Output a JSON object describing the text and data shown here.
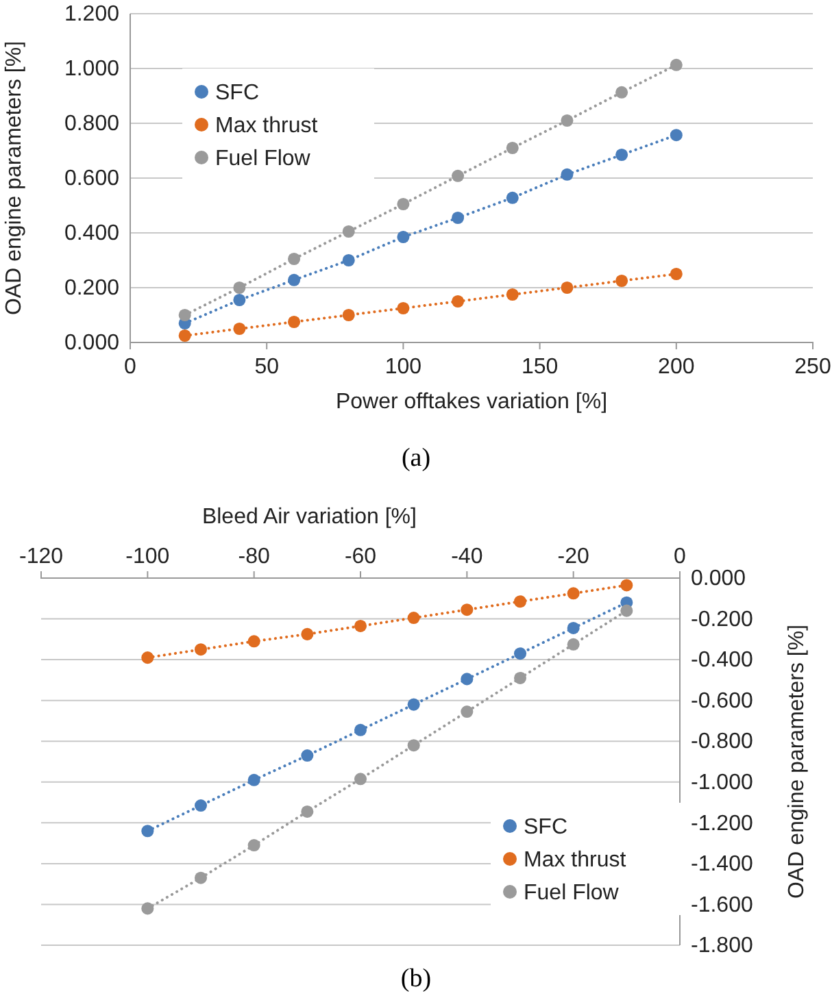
{
  "chart_data": [
    {
      "type": "line",
      "xlabel": "Power offtakes variation [%]",
      "ylabel": "OAD engine parameters [%]",
      "annotations": [
        "(a)"
      ],
      "x": [
        20,
        40,
        60,
        80,
        100,
        120,
        140,
        160,
        180,
        200
      ],
      "series": [
        {
          "name": "SFC",
          "color": "#4a7ebb",
          "values": [
            0.07,
            0.155,
            0.228,
            0.3,
            0.385,
            0.455,
            0.528,
            0.613,
            0.685,
            0.757
          ]
        },
        {
          "name": "Max thrust",
          "color": "#e06c1f",
          "values": [
            0.025,
            0.05,
            0.075,
            0.1,
            0.125,
            0.15,
            0.175,
            0.2,
            0.225,
            0.25
          ]
        },
        {
          "name": "Fuel Flow",
          "color": "#9a9a9a",
          "values": [
            0.1,
            0.2,
            0.305,
            0.405,
            0.505,
            0.608,
            0.71,
            0.81,
            0.913,
            1.013
          ]
        }
      ],
      "xlim": [
        0,
        250
      ],
      "xticks": [
        0,
        50,
        100,
        150,
        200,
        250
      ],
      "ylim": [
        0,
        1.2
      ],
      "yticks": [
        {
          "value": 0,
          "label": "0.000"
        },
        {
          "value": 0.2,
          "label": "0.200"
        },
        {
          "value": 0.4,
          "label": "0.400"
        },
        {
          "value": 0.6,
          "label": "0.600"
        },
        {
          "value": 0.8,
          "label": "0.800"
        },
        {
          "value": 1,
          "label": "1.000"
        },
        {
          "value": 1.2,
          "label": "1.200"
        }
      ],
      "grid": "y",
      "legend": "top left",
      "marker": "circle",
      "line_style": "dotted"
    },
    {
      "type": "line",
      "xlabel": "Bleed Air variation [%]",
      "ylabel": "OAD engine parameters [%]",
      "annotations": [
        "(b)"
      ],
      "x": [
        -100,
        -90,
        -80,
        -70,
        -60,
        -50,
        -40,
        -30,
        -20,
        -10
      ],
      "series": [
        {
          "name": "SFC",
          "color": "#4a7ebb",
          "values": [
            -1.24,
            -1.115,
            -0.99,
            -0.87,
            -0.745,
            -0.62,
            -0.495,
            -0.37,
            -0.245,
            -0.12
          ]
        },
        {
          "name": "Max thrust",
          "color": "#e06c1f",
          "values": [
            -0.39,
            -0.35,
            -0.31,
            -0.275,
            -0.235,
            -0.195,
            -0.155,
            -0.115,
            -0.075,
            -0.035
          ]
        },
        {
          "name": "Fuel Flow",
          "color": "#9a9a9a",
          "values": [
            -1.62,
            -1.47,
            -1.31,
            -1.145,
            -0.985,
            -0.82,
            -0.655,
            -0.49,
            -0.325,
            -0.16
          ]
        }
      ],
      "xlim": [
        -120,
        0
      ],
      "xticks": [
        -120,
        -100,
        -80,
        -60,
        -40,
        -20,
        0
      ],
      "ylim": [
        -1.8,
        0
      ],
      "yticks": [
        {
          "value": 0,
          "label": "0.000"
        },
        {
          "value": -0.2,
          "label": "-0.200"
        },
        {
          "value": -0.4,
          "label": "-0.400"
        },
        {
          "value": -0.6,
          "label": "-0.600"
        },
        {
          "value": -0.8,
          "label": "-0.800"
        },
        {
          "value": -1,
          "label": "-1.000"
        },
        {
          "value": -1.2,
          "label": "-1.200"
        },
        {
          "value": -1.4,
          "label": "-1.400"
        },
        {
          "value": -1.6,
          "label": "-1.600"
        },
        {
          "value": -1.8,
          "label": "-1.800"
        }
      ],
      "grid": "y",
      "legend": "bottom right",
      "marker": "circle",
      "line_style": "dotted"
    }
  ]
}
